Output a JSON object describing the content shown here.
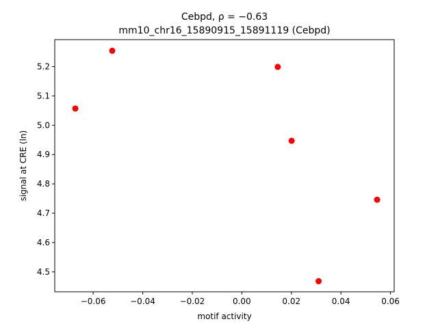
{
  "chart_data": {
    "type": "scatter",
    "title_line1": "Cebpd, ρ = −0.63",
    "title_line2": "mm10_chr16_15890915_15891119 (Cebpd)",
    "xlabel": "motif activity",
    "ylabel": "signal at CRE (ln)",
    "xlim": [
      -0.0755,
      0.0615
    ],
    "ylim": [
      4.432,
      5.292
    ],
    "xticks": [
      -0.06,
      -0.04,
      -0.02,
      0.0,
      0.02,
      0.04,
      0.06
    ],
    "xtick_labels": [
      "−0.06",
      "−0.04",
      "−0.02",
      "0.00",
      "0.02",
      "0.04",
      "0.06"
    ],
    "yticks": [
      4.5,
      4.6,
      4.7,
      4.8,
      4.9,
      5.0,
      5.1,
      5.2
    ],
    "ytick_labels": [
      "4.5",
      "4.6",
      "4.7",
      "4.8",
      "4.9",
      "5.0",
      "5.1",
      "5.2"
    ],
    "grid": false,
    "marker_color": "#ff0000",
    "points": [
      {
        "x": -0.0672,
        "y": 5.057
      },
      {
        "x": -0.0523,
        "y": 5.254
      },
      {
        "x": 0.0145,
        "y": 5.199
      },
      {
        "x": 0.0201,
        "y": 4.947
      },
      {
        "x": 0.031,
        "y": 4.468
      },
      {
        "x": 0.0546,
        "y": 4.746
      }
    ]
  }
}
